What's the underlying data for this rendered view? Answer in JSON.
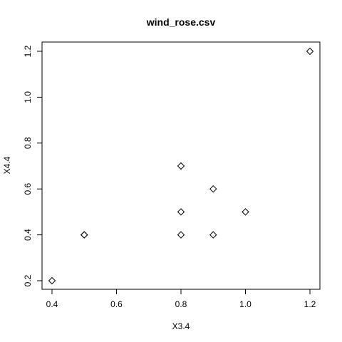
{
  "chart_data": {
    "type": "scatter",
    "title": "wind_rose.csv",
    "xlabel": "X3.4",
    "ylabel": "X4.4",
    "xlim": [
      0.4,
      1.2
    ],
    "ylim": [
      0.2,
      1.2
    ],
    "xticks": [
      0.4,
      0.6,
      0.8,
      1.0,
      1.2
    ],
    "xtick_labels": [
      "0.4",
      "0.6",
      "0.8",
      "1.0",
      "1.2"
    ],
    "yticks": [
      0.2,
      0.4,
      0.6,
      0.8,
      1.0,
      1.2
    ],
    "ytick_labels": [
      "0.2",
      "0.4",
      "0.6",
      "0.8",
      "1.0",
      "1.2"
    ],
    "marker": "diamond",
    "grid": false,
    "points": [
      {
        "x": 0.4,
        "y": 0.2
      },
      {
        "x": 0.5,
        "y": 0.4
      },
      {
        "x": 0.5,
        "y": 0.4
      },
      {
        "x": 0.8,
        "y": 0.7
      },
      {
        "x": 0.8,
        "y": 0.5
      },
      {
        "x": 0.8,
        "y": 0.4
      },
      {
        "x": 0.9,
        "y": 0.6
      },
      {
        "x": 0.9,
        "y": 0.4
      },
      {
        "x": 1.0,
        "y": 0.5
      },
      {
        "x": 1.2,
        "y": 1.2
      }
    ]
  }
}
